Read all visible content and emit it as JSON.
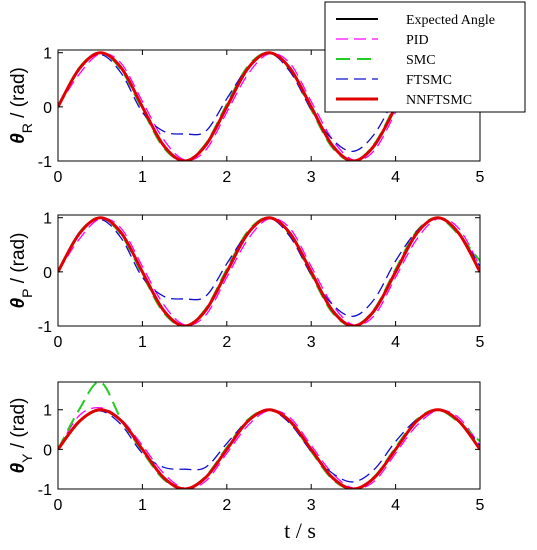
{
  "chart_data": [
    {
      "type": "line",
      "ylabel": {
        "symbol": "θ",
        "sub": "R",
        "unit": " / (rad)"
      },
      "xlim": [
        0,
        5
      ],
      "ylim": [
        -1,
        1.05
      ],
      "xticks": [
        "0",
        "1",
        "2",
        "3",
        "4",
        "5"
      ],
      "yticks": [
        "1",
        "0",
        "-1"
      ],
      "x": [
        0,
        0.25,
        0.5,
        0.75,
        1,
        1.25,
        1.5,
        1.75,
        2,
        2.25,
        2.5,
        2.75,
        3,
        3.25,
        3.5,
        3.75,
        4
      ],
      "series": [
        {
          "name": "Expected Angle",
          "values": [
            0,
            0.71,
            1,
            0.71,
            0,
            -0.71,
            -1,
            -0.71,
            0,
            0.71,
            1,
            0.71,
            0,
            -0.71,
            -1,
            -0.71,
            0
          ]
        },
        {
          "name": "PID",
          "values": [
            0,
            0.6,
            0.98,
            0.8,
            0.1,
            -0.6,
            -0.98,
            -0.8,
            -0.1,
            0.6,
            0.98,
            0.8,
            0.1,
            -0.6,
            -0.98,
            -0.8,
            -0.1
          ]
        },
        {
          "name": "SMC",
          "values": [
            0,
            0.72,
            1,
            0.68,
            -0.05,
            -0.75,
            -1,
            -0.68,
            0.05,
            0.75,
            1,
            0.68,
            -0.05,
            -0.75,
            -1,
            -0.68,
            0.05
          ]
        },
        {
          "name": "FTSMC",
          "values": [
            0,
            0.7,
            0.97,
            0.62,
            -0.1,
            -0.45,
            -0.5,
            -0.45,
            0.15,
            0.72,
            0.99,
            0.65,
            -0.05,
            -0.6,
            -0.82,
            -0.5,
            0.2
          ]
        },
        {
          "name": "NNFTSMC",
          "values": [
            0,
            0.7,
            1,
            0.72,
            0,
            -0.71,
            -1,
            -0.71,
            0,
            0.71,
            1,
            0.71,
            0,
            -0.71,
            -1,
            -0.71,
            0
          ]
        }
      ]
    },
    {
      "type": "line",
      "ylabel": {
        "symbol": "θ",
        "sub": "P",
        "unit": " / (rad)"
      },
      "xlim": [
        0,
        5
      ],
      "ylim": [
        -1,
        1.05
      ],
      "xticks": [
        "0",
        "1",
        "2",
        "3",
        "4",
        "5"
      ],
      "yticks": [
        "1",
        "0",
        "-1"
      ],
      "x": [
        0,
        0.25,
        0.5,
        0.75,
        1,
        1.25,
        1.5,
        1.75,
        2,
        2.25,
        2.5,
        2.75,
        3,
        3.25,
        3.5,
        3.75,
        4,
        4.25,
        4.5,
        4.75,
        5
      ],
      "series": [
        {
          "name": "Expected Angle",
          "values": [
            0,
            0.71,
            1,
            0.71,
            0,
            -0.71,
            -1,
            -0.71,
            0,
            0.71,
            1,
            0.71,
            0,
            -0.71,
            -1,
            -0.71,
            0,
            0.71,
            1,
            0.71,
            0
          ]
        },
        {
          "name": "PID",
          "values": [
            0,
            0.6,
            0.98,
            0.8,
            0.1,
            -0.6,
            -0.98,
            -0.8,
            -0.1,
            0.6,
            0.98,
            0.8,
            0.1,
            -0.6,
            -0.98,
            -0.8,
            -0.1,
            0.6,
            0.98,
            0.8,
            0.1
          ]
        },
        {
          "name": "SMC",
          "values": [
            0,
            0.72,
            1,
            0.68,
            -0.05,
            -0.75,
            -1,
            -0.68,
            0.05,
            0.75,
            1,
            0.68,
            -0.05,
            -0.75,
            -1,
            -0.68,
            0.05,
            0.75,
            1,
            0.68,
            0.2
          ]
        },
        {
          "name": "FTSMC",
          "values": [
            0,
            0.7,
            0.97,
            0.62,
            -0.1,
            -0.45,
            -0.5,
            -0.45,
            0.15,
            0.72,
            0.99,
            0.65,
            -0.05,
            -0.6,
            -0.82,
            -0.5,
            0.2,
            0.75,
            1,
            0.7,
            0.1
          ]
        },
        {
          "name": "NNFTSMC",
          "values": [
            0,
            0.7,
            1,
            0.72,
            0,
            -0.71,
            -1,
            -0.71,
            0,
            0.71,
            1,
            0.71,
            0,
            -0.71,
            -1,
            -0.71,
            0,
            0.71,
            1,
            0.71,
            0
          ]
        }
      ]
    },
    {
      "type": "line",
      "ylabel": {
        "symbol": "θ",
        "sub": "Y",
        "unit": " / (rad)"
      },
      "xlim": [
        0,
        5
      ],
      "ylim": [
        -1,
        1.7
      ],
      "xticks": [
        "0",
        "1",
        "2",
        "3",
        "4",
        "5"
      ],
      "yticks": [
        "1",
        "0",
        "-1"
      ],
      "x": [
        0,
        0.25,
        0.5,
        0.75,
        1,
        1.25,
        1.5,
        1.75,
        2,
        2.25,
        2.5,
        2.75,
        3,
        3.25,
        3.5,
        3.75,
        4,
        4.25,
        4.5,
        4.75,
        5
      ],
      "series": [
        {
          "name": "Expected Angle",
          "values": [
            0,
            0.71,
            1,
            0.71,
            0,
            -0.71,
            -1,
            -0.71,
            0,
            0.71,
            1,
            0.71,
            0,
            -0.71,
            -1,
            -0.71,
            0,
            0.71,
            1,
            0.71,
            0
          ]
        },
        {
          "name": "PID",
          "values": [
            0,
            0.85,
            1.05,
            0.75,
            0.1,
            -0.6,
            -0.98,
            -0.8,
            -0.1,
            0.6,
            0.98,
            0.8,
            0.1,
            -0.6,
            -0.98,
            -0.8,
            -0.1,
            0.6,
            0.98,
            0.8,
            0.1
          ]
        },
        {
          "name": "SMC",
          "values": [
            0,
            1.0,
            1.7,
            0.75,
            -0.05,
            -0.75,
            -1,
            -0.68,
            0.05,
            0.75,
            1,
            0.68,
            -0.05,
            -0.75,
            -1,
            -0.68,
            0.05,
            0.75,
            1,
            0.68,
            0.2
          ]
        },
        {
          "name": "FTSMC",
          "values": [
            0,
            0.7,
            0.97,
            0.62,
            -0.1,
            -0.45,
            -0.5,
            -0.45,
            0.15,
            0.72,
            0.99,
            0.65,
            -0.05,
            -0.6,
            -0.82,
            -0.5,
            0.2,
            0.75,
            1,
            0.7,
            0.1
          ]
        },
        {
          "name": "NNFTSMC",
          "values": [
            0,
            0.7,
            1,
            0.72,
            0,
            -0.71,
            -1,
            -0.71,
            0,
            0.71,
            1,
            0.71,
            0,
            -0.71,
            -1,
            -0.71,
            0,
            0.71,
            1,
            0.71,
            0
          ]
        }
      ]
    }
  ],
  "legend": {
    "entries": [
      "Expected Angle",
      "PID",
      "SMC",
      "FTSMC",
      "NNFTSMC"
    ],
    "colors": [
      "#000000",
      "#ff00ff",
      "#22cc22",
      "#1010cc",
      "#e00000"
    ],
    "dash": [
      "",
      "12,6",
      "14,7",
      "12,6",
      ""
    ],
    "widths": [
      2,
      1.3,
      2,
      1.3,
      3
    ]
  },
  "xlabel": "t / s"
}
